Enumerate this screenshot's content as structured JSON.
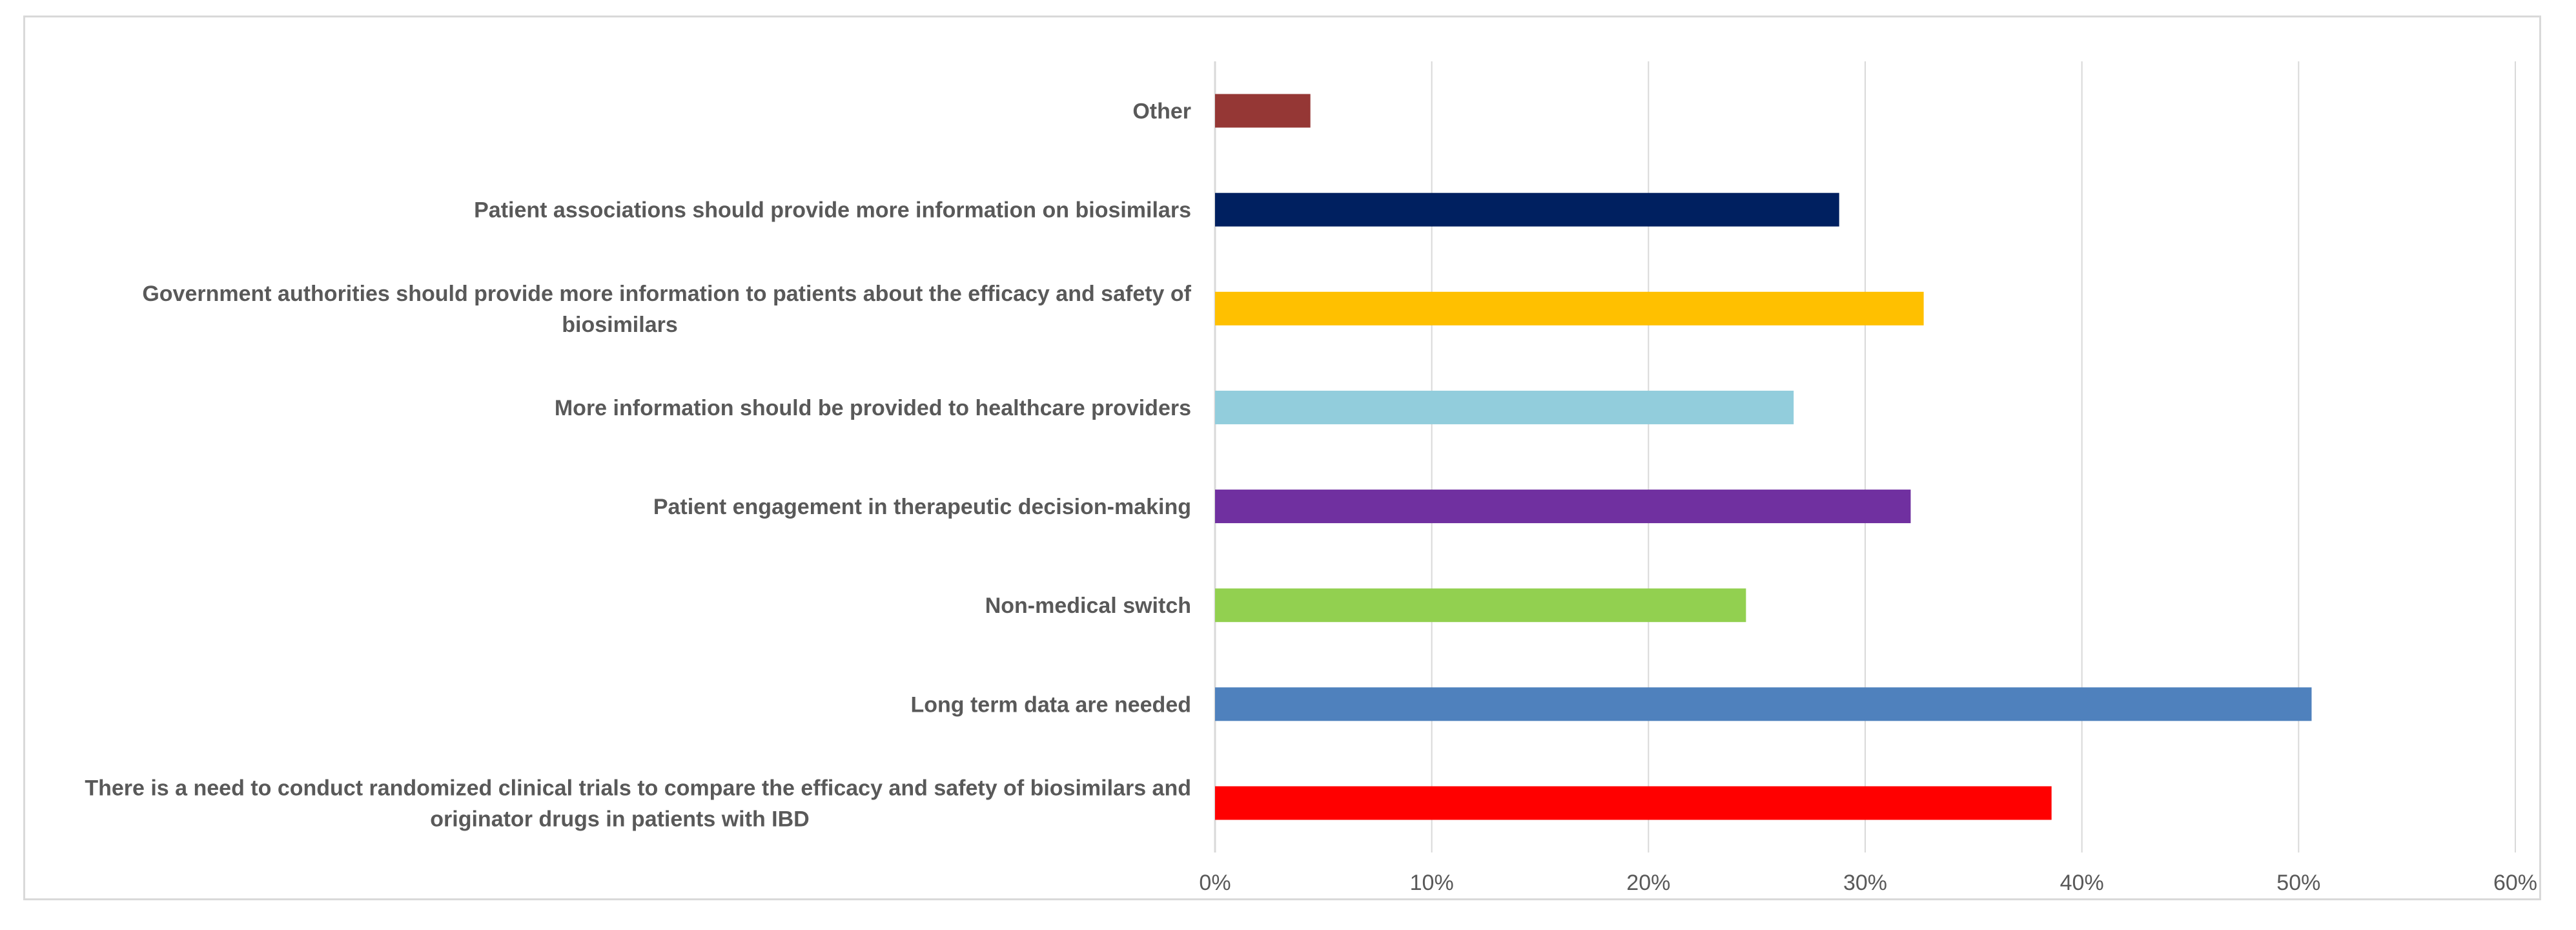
{
  "chart_data": {
    "type": "bar",
    "orientation": "horizontal",
    "title": "",
    "xlabel": "",
    "ylabel": "",
    "xlim": [
      0,
      60
    ],
    "grid": true,
    "categories": [
      {
        "lines": [
          "There is a need to conduct randomized clinical trials to compare the efficacy and safety of biosimilars and",
          "originator drugs in patients with IBD"
        ],
        "value": 38.6,
        "color": "#ff0000"
      },
      {
        "lines": [
          "Long term data are needed"
        ],
        "value": 50.6,
        "color": "#4f81bd"
      },
      {
        "lines": [
          "Non-medical switch"
        ],
        "value": 24.5,
        "color": "#92d050"
      },
      {
        "lines": [
          "Patient engagement in therapeutic decision-making"
        ],
        "value": 32.1,
        "color": "#7030a0"
      },
      {
        "lines": [
          "More information should be provided to healthcare providers"
        ],
        "value": 26.7,
        "color": "#92cddc"
      },
      {
        "lines": [
          "Government authorities should provide more information to patients about the efficacy and safety of",
          "biosimilars"
        ],
        "value": 32.7,
        "color": "#ffc000"
      },
      {
        "lines": [
          "Patient associations should provide more information on biosimilars"
        ],
        "value": 28.8,
        "color": "#002060"
      },
      {
        "lines": [
          "Other"
        ],
        "value": 4.4,
        "color": "#953735"
      }
    ],
    "x_ticks": [
      "0%",
      "10%",
      "20%",
      "30%",
      "40%",
      "50%",
      "60%"
    ]
  }
}
